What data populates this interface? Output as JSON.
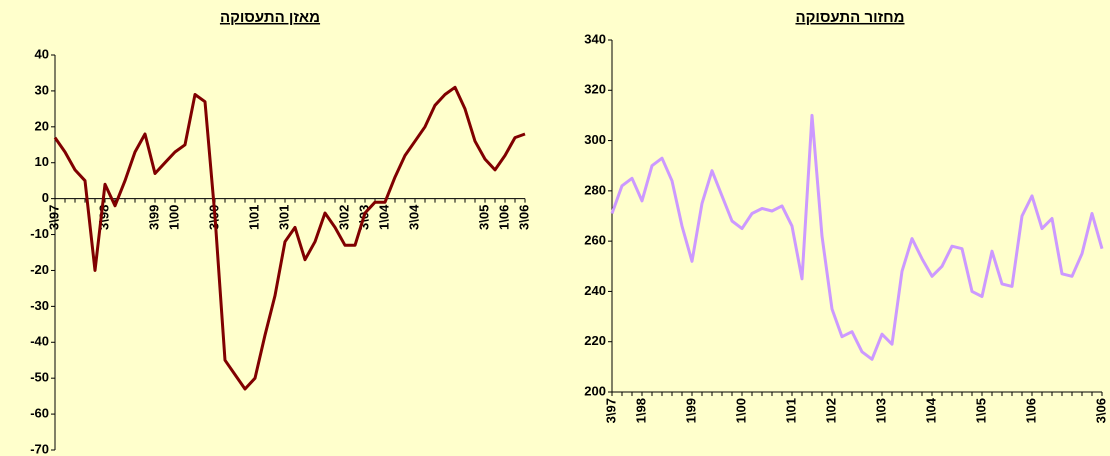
{
  "chart_data": [
    {
      "type": "line",
      "title": "מאזן התעסוקה",
      "categories": [
        "3\\97",
        null,
        null,
        null,
        null,
        "3\\98",
        null,
        null,
        null,
        null,
        "3\\99",
        null,
        "1\\00",
        null,
        null,
        null,
        "3\\00",
        null,
        null,
        null,
        "1\\01",
        null,
        null,
        "3\\01",
        null,
        null,
        null,
        null,
        null,
        "3\\02",
        null,
        "3\\03",
        null,
        "1\\04",
        null,
        null,
        "3\\04",
        null,
        null,
        null,
        null,
        null,
        null,
        "3\\05",
        null,
        "1\\06",
        null,
        "3\\06"
      ],
      "values": [
        17,
        13,
        8,
        5,
        -20,
        4,
        -2,
        5,
        13,
        18,
        7,
        10,
        13,
        15,
        29,
        27,
        -5,
        -45,
        -49,
        -53,
        -50,
        -38,
        -27,
        -12,
        -8,
        -17,
        -12,
        -4,
        -8,
        -13,
        -13,
        -4,
        -1,
        -1,
        6,
        12,
        16,
        20,
        26,
        29,
        31,
        25,
        16,
        11,
        8,
        12,
        17,
        18
      ],
      "color": "#800000",
      "ylim": [
        -70,
        40
      ],
      "yticks": [
        -70,
        -60,
        -50,
        -40,
        -30,
        -20,
        -10,
        0,
        10,
        20,
        30,
        40
      ],
      "grid": false
    },
    {
      "type": "line",
      "title": "מחזור התעסוקה",
      "categories": [
        "3\\97",
        null,
        null,
        "1\\98",
        null,
        null,
        null,
        null,
        "1\\99",
        null,
        null,
        null,
        null,
        "1\\00",
        null,
        null,
        null,
        null,
        "1\\01",
        null,
        null,
        null,
        "1\\02",
        null,
        null,
        null,
        null,
        "1\\03",
        null,
        null,
        null,
        null,
        "1\\04",
        null,
        null,
        null,
        null,
        "1\\05",
        null,
        null,
        null,
        null,
        "1\\06",
        null,
        null,
        null,
        null,
        null,
        null,
        "3\\06"
      ],
      "values": [
        271,
        282,
        285,
        276,
        290,
        293,
        284,
        266,
        252,
        275,
        288,
        278,
        268,
        265,
        271,
        273,
        272,
        274,
        266,
        245,
        310,
        262,
        233,
        222,
        224,
        216,
        213,
        223,
        219,
        248,
        261,
        253,
        246,
        250,
        258,
        257,
        240,
        238,
        256,
        243,
        242,
        270,
        278,
        265,
        269,
        247,
        246,
        255,
        271,
        257
      ],
      "color": "#CC99FF",
      "ylim": [
        200,
        340
      ],
      "yticks": [
        200,
        220,
        240,
        260,
        280,
        300,
        320,
        340
      ],
      "grid": false
    }
  ]
}
